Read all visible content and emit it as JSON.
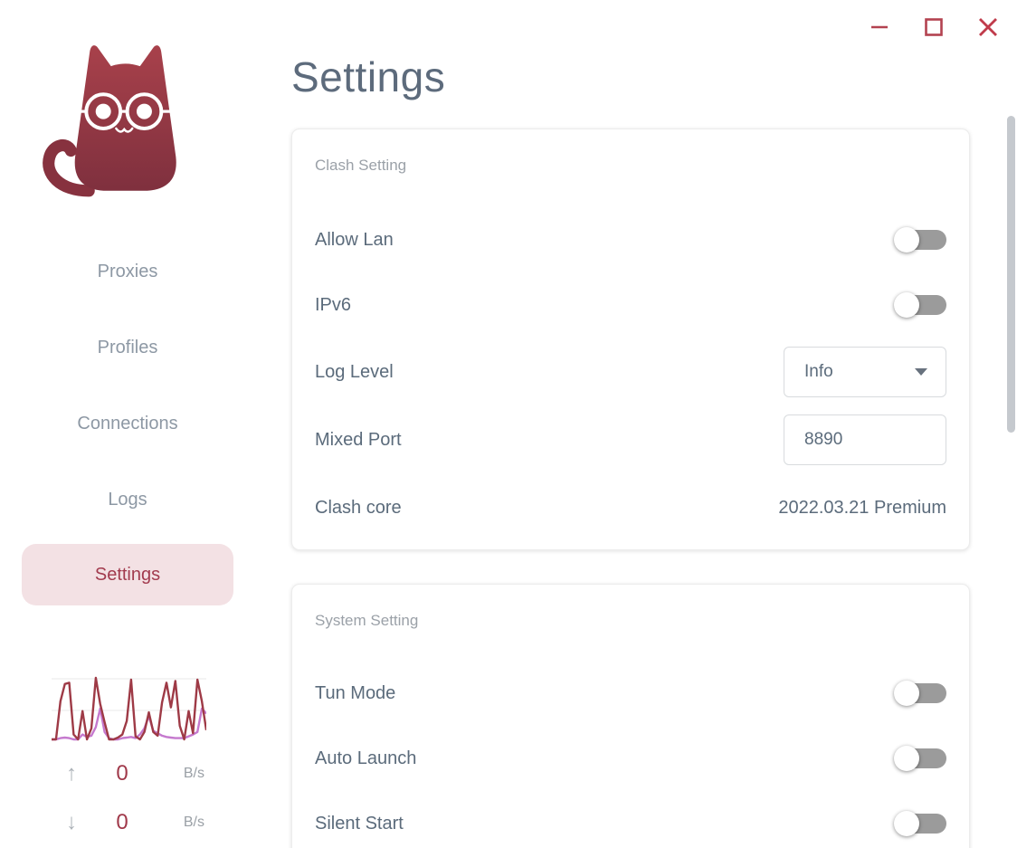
{
  "window": {
    "minimize_label": "minimize",
    "maximize_label": "maximize",
    "close_label": "close"
  },
  "header": {
    "title": "Settings"
  },
  "sidebar": {
    "items": [
      {
        "label": "Proxies",
        "active": false
      },
      {
        "label": "Profiles",
        "active": false
      },
      {
        "label": "Connections",
        "active": false
      },
      {
        "label": "Logs",
        "active": false
      },
      {
        "label": "Settings",
        "active": true
      }
    ],
    "traffic": {
      "up_value": "0",
      "up_unit": "B/s",
      "down_value": "0",
      "down_unit": "B/s"
    }
  },
  "cards": [
    {
      "section": "Clash Setting",
      "rows": [
        {
          "label": "Allow Lan",
          "type": "toggle",
          "value": false
        },
        {
          "label": "IPv6",
          "type": "toggle",
          "value": false
        },
        {
          "label": "Log Level",
          "type": "select",
          "value": "Info"
        },
        {
          "label": "Mixed Port",
          "type": "input",
          "value": "8890"
        },
        {
          "label": "Clash core",
          "type": "text",
          "value": "2022.03.21 Premium"
        }
      ]
    },
    {
      "section": "System Setting",
      "rows": [
        {
          "label": "Tun Mode",
          "type": "toggle",
          "value": false
        },
        {
          "label": "Auto Launch",
          "type": "toggle",
          "value": false
        },
        {
          "label": "Silent Start",
          "type": "toggle",
          "value": false
        }
      ]
    }
  ],
  "chart_data": {
    "type": "line",
    "title": "Traffic sparkline (unlabeled axes)",
    "x_range": [
      0,
      35
    ],
    "ylim": [
      0,
      100
    ],
    "grid": "two light horizontal gridlines",
    "legend": "none",
    "series": [
      {
        "name": "upload",
        "color": "#9e3a46",
        "values": [
          0,
          0,
          62,
          90,
          92,
          8,
          0,
          46,
          0,
          18,
          100,
          58,
          28,
          0,
          0,
          3,
          8,
          30,
          97,
          5,
          0,
          12,
          44,
          12,
          6,
          60,
          92,
          52,
          95,
          22,
          0,
          46,
          10,
          97,
          62,
          15
        ]
      },
      {
        "name": "download",
        "color": "#c579ce",
        "values": [
          0,
          0,
          2,
          3,
          2,
          0,
          0,
          8,
          4,
          6,
          20,
          50,
          12,
          2,
          0,
          0,
          2,
          3,
          4,
          2,
          8,
          18,
          38,
          14,
          10,
          6,
          4,
          3,
          2,
          2,
          2,
          5,
          8,
          12,
          50,
          42
        ]
      }
    ],
    "current_up": "0 B/s",
    "current_down": "0 B/s"
  },
  "colors": {
    "brand_red": "#a23b4e",
    "logo_gradient_top": "#a8414b",
    "logo_gradient_bottom": "#7f303e",
    "active_pill_bg": "#f3e1e4",
    "slate_text": "#5b6b7b",
    "gray_text": "#9ba1a8",
    "nav_text": "#8d98a4",
    "toggle_track": "#9b9b9b",
    "control_border": "#d8dbde",
    "window_button_red": "#b34250",
    "chart_grid": "#e9e9e9",
    "scrollbar_thumb": "#c5c9ce"
  }
}
